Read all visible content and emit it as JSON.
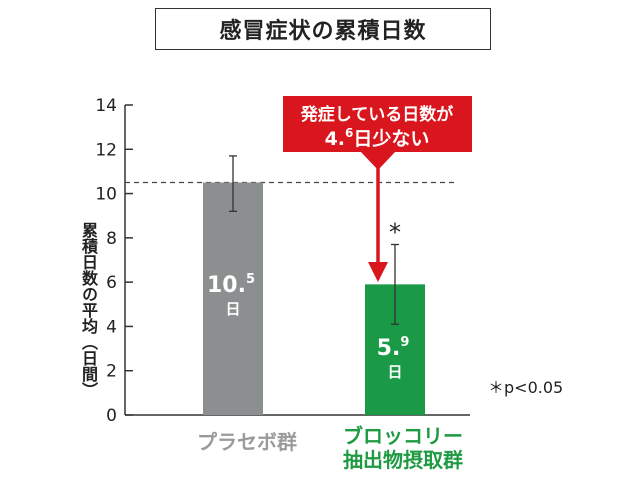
{
  "title": "感冒症状の累積日数",
  "ylabel": "累積日数の平均（日間）",
  "note": "＊p<0.05",
  "callout": {
    "line1": "発症している日数が",
    "line2": "4.6日少ない"
  },
  "colors": {
    "placebo": "#8c8f90",
    "broccoli": "#1a9a46",
    "callout": "#d9161d",
    "axis": "#333333"
  },
  "chart_data": {
    "type": "bar",
    "categories": [
      "プラセボ群",
      "ブロッコリー抽出物摂取群"
    ],
    "values": [
      10.5,
      5.9
    ],
    "value_labels": [
      {
        "main": "10.",
        "sup": "5",
        "unit": "日"
      },
      {
        "main": "5.",
        "sup": "9",
        "unit": "日"
      }
    ],
    "error_bars": [
      [
        9.2,
        11.7
      ],
      [
        4.1,
        7.7
      ]
    ],
    "significance": "*",
    "reference_line": 10.5,
    "ylim": [
      0,
      14
    ],
    "yticks": [
      0,
      2,
      4,
      6,
      8,
      10,
      12,
      14
    ],
    "ylabel": "累積日数の平均（日間）"
  }
}
